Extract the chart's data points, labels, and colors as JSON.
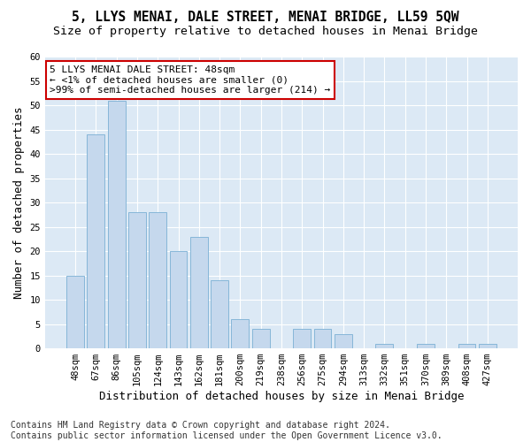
{
  "title": "5, LLYS MENAI, DALE STREET, MENAI BRIDGE, LL59 5QW",
  "subtitle": "Size of property relative to detached houses in Menai Bridge",
  "xlabel": "Distribution of detached houses by size in Menai Bridge",
  "ylabel": "Number of detached properties",
  "categories": [
    "48sqm",
    "67sqm",
    "86sqm",
    "105sqm",
    "124sqm",
    "143sqm",
    "162sqm",
    "181sqm",
    "200sqm",
    "219sqm",
    "238sqm",
    "256sqm",
    "275sqm",
    "294sqm",
    "313sqm",
    "332sqm",
    "351sqm",
    "370sqm",
    "389sqm",
    "408sqm",
    "427sqm"
  ],
  "values": [
    15,
    44,
    51,
    28,
    28,
    20,
    23,
    14,
    6,
    4,
    0,
    4,
    4,
    3,
    0,
    1,
    0,
    1,
    0,
    1,
    1
  ],
  "bar_color": "#c5d8ed",
  "bar_edge_color": "#7aafd4",
  "background_color": "#dce9f5",
  "fig_background_color": "#ffffff",
  "ylim": [
    0,
    60
  ],
  "yticks": [
    0,
    5,
    10,
    15,
    20,
    25,
    30,
    35,
    40,
    45,
    50,
    55,
    60
  ],
  "annotation_text": "5 LLYS MENAI DALE STREET: 48sqm\n← <1% of detached houses are smaller (0)\n>99% of semi-detached houses are larger (214) →",
  "annotation_box_color": "#ffffff",
  "annotation_border_color": "#cc0000",
  "footer_text": "Contains HM Land Registry data © Crown copyright and database right 2024.\nContains public sector information licensed under the Open Government Licence v3.0.",
  "grid_color": "#ffffff",
  "title_fontsize": 10.5,
  "subtitle_fontsize": 9.5,
  "xlabel_fontsize": 9,
  "ylabel_fontsize": 9,
  "tick_fontsize": 7.5,
  "annotation_fontsize": 8,
  "footer_fontsize": 7
}
